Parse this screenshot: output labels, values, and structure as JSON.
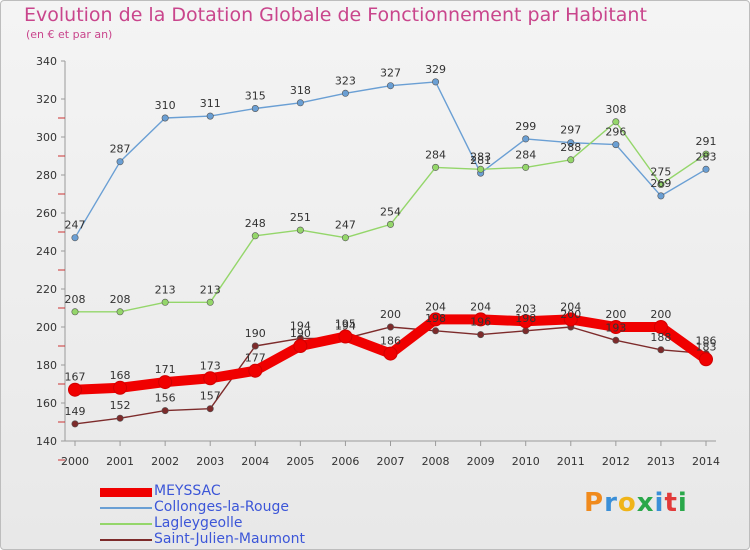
{
  "title": "Evolution de la Dotation Globale de Fonctionnement par Habitant",
  "subtitle": "(en € et par an)",
  "logo": {
    "text": "Proxiti",
    "colors": [
      "#f08a1c",
      "#3a8fd8",
      "#f0b418",
      "#2aa84a",
      "#3a8fd8",
      "#e23a3a",
      "#2aa84a"
    ]
  },
  "chart_data": {
    "type": "line",
    "x": [
      "2000",
      "2001",
      "2002",
      "2003",
      "2004",
      "2005",
      "2006",
      "2007",
      "2008",
      "2009",
      "2010",
      "2011",
      "2012",
      "2013",
      "2014"
    ],
    "ylim": [
      140,
      340
    ],
    "yticks": [
      140,
      160,
      180,
      200,
      220,
      240,
      260,
      280,
      300,
      320,
      340
    ],
    "grid": false,
    "legend_position": "bottom-left",
    "series": [
      {
        "name": "MEYSSAC",
        "color": "#f00000",
        "values": [
          167,
          168,
          171,
          173,
          177,
          190,
          195,
          186,
          204,
          204,
          203,
          204,
          200,
          200,
          183
        ]
      },
      {
        "name": "Collonges-la-Rouge",
        "color": "#6a9fd4",
        "values": [
          247,
          287,
          310,
          311,
          315,
          318,
          323,
          327,
          329,
          281,
          299,
          297,
          296,
          269,
          283
        ]
      },
      {
        "name": "Lagleygeolle",
        "color": "#94d66a",
        "values": [
          208,
          208,
          213,
          213,
          248,
          251,
          247,
          254,
          284,
          283,
          284,
          288,
          308,
          275,
          291
        ]
      },
      {
        "name": "Saint-Julien-Maumont",
        "color": "#7d2b2b",
        "values": [
          149,
          152,
          156,
          157,
          190,
          194,
          194,
          200,
          198,
          196,
          198,
          200,
          193,
          188,
          186
        ]
      }
    ]
  }
}
